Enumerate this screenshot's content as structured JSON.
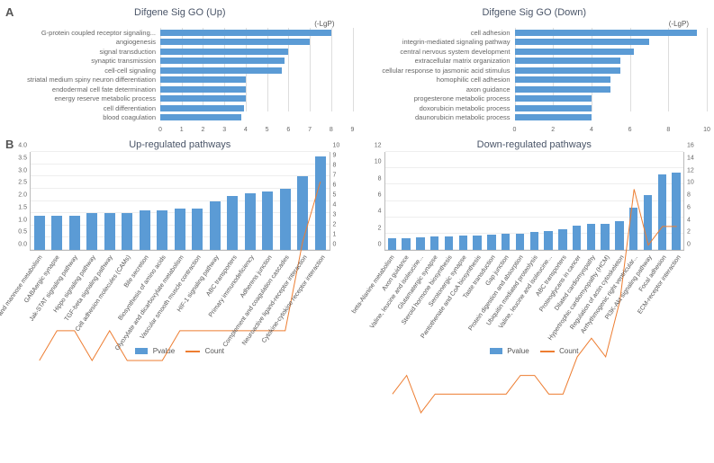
{
  "colors": {
    "bar": "#5b9bd5",
    "line": "#ed7d31",
    "grid": "#eeeeee",
    "axis": "#bbbbbb",
    "text": "#555555",
    "background": "#ffffff"
  },
  "panelA": {
    "letter": "A",
    "left": {
      "title": "Difgene Sig GO (Up)",
      "subtitle": "(-LgP)",
      "xlim": [
        0,
        9
      ],
      "xtick_step": 1,
      "bars": [
        {
          "label": "G-protein coupled receptor signaling...",
          "value": 8.0
        },
        {
          "label": "angiogenesis",
          "value": 7.0
        },
        {
          "label": "signal transduction",
          "value": 6.0
        },
        {
          "label": "synaptic transmission",
          "value": 5.8
        },
        {
          "label": "cell-cell signaling",
          "value": 5.7
        },
        {
          "label": "striatal medium spiny neuron differentiation",
          "value": 4.0
        },
        {
          "label": "endodermal cell fate determination",
          "value": 4.0
        },
        {
          "label": "energy reserve metabolic process",
          "value": 4.0
        },
        {
          "label": "cell differentiation",
          "value": 3.9
        },
        {
          "label": "blood coagulation",
          "value": 3.8
        }
      ]
    },
    "right": {
      "title": "Difgene Sig GO (Down)",
      "subtitle": "(-LgP)",
      "xlim": [
        0,
        10
      ],
      "xtick_step": 2,
      "bars": [
        {
          "label": "cell adhesion",
          "value": 9.5
        },
        {
          "label": "integrin-mediated signaling pathway",
          "value": 7.0
        },
        {
          "label": "central nervous system development",
          "value": 6.2
        },
        {
          "label": "extracellular matrix organization",
          "value": 5.5
        },
        {
          "label": "cellular response to jasmonic acid stimulus",
          "value": 5.5
        },
        {
          "label": "homophilic cell adhesion",
          "value": 5.0
        },
        {
          "label": "axon guidance",
          "value": 5.0
        },
        {
          "label": "progesterone metabolic process",
          "value": 4.0
        },
        {
          "label": "doxorubicin metabolic process",
          "value": 4.0
        },
        {
          "label": "daunorubicin metabolic process",
          "value": 4.0
        }
      ]
    }
  },
  "panelB": {
    "letter": "B",
    "legend": {
      "bar": "Pvalue",
      "line": "Count"
    },
    "left": {
      "title": "Up-regulated pathways",
      "y_left": {
        "lim": [
          0,
          4
        ],
        "step": 0.5
      },
      "y_right": {
        "lim": [
          0,
          10
        ],
        "step": 1
      },
      "items": [
        {
          "label": "Fructose and mannose metabolism",
          "pvalue": 1.4,
          "count": 3
        },
        {
          "label": "GABAergic synapse",
          "pvalue": 1.4,
          "count": 4
        },
        {
          "label": "Jak-STAT signaling pathway",
          "pvalue": 1.4,
          "count": 4
        },
        {
          "label": "Hippo signaling pathway",
          "pvalue": 1.5,
          "count": 3
        },
        {
          "label": "TGF-beta signaling pathway",
          "pvalue": 1.5,
          "count": 4
        },
        {
          "label": "Cell adhesion molecules (CAMs)",
          "pvalue": 1.5,
          "count": 3
        },
        {
          "label": "Bile secretion",
          "pvalue": 1.6,
          "count": 3
        },
        {
          "label": "Biosynthesis of amino acids",
          "pvalue": 1.6,
          "count": 3
        },
        {
          "label": "Glyoxylate and dicarboxylate metabolism",
          "pvalue": 1.7,
          "count": 4
        },
        {
          "label": "Vascular smooth muscle contraction",
          "pvalue": 1.7,
          "count": 4
        },
        {
          "label": "HIF-1 signaling pathway",
          "pvalue": 2.0,
          "count": 4
        },
        {
          "label": "ABC transporters",
          "pvalue": 2.2,
          "count": 4
        },
        {
          "label": "Primary immunodeficiency",
          "pvalue": 2.3,
          "count": 4
        },
        {
          "label": "Adherens junction",
          "pvalue": 2.4,
          "count": 4
        },
        {
          "label": "Complement and coagulation cascades",
          "pvalue": 2.5,
          "count": 4
        },
        {
          "label": "Neuroactive ligand-receptor interaction",
          "pvalue": 3.0,
          "count": 7
        },
        {
          "label": "Cytokine-cytokine receptor interaction",
          "pvalue": 3.8,
          "count": 9
        }
      ]
    },
    "right": {
      "title": "Down-regulated pathways",
      "y_left": {
        "lim": [
          0,
          12
        ],
        "step": 2
      },
      "y_right": {
        "lim": [
          0,
          16
        ],
        "step": 2
      },
      "items": [
        {
          "label": "beta-Alanine metabolism",
          "pvalue": 1.4,
          "count": 3
        },
        {
          "label": "Axon guidance",
          "pvalue": 1.4,
          "count": 4
        },
        {
          "label": "Valine, leucine and isoleucine...",
          "pvalue": 1.5,
          "count": 2
        },
        {
          "label": "Glutamatergic synapse",
          "pvalue": 1.6,
          "count": 3
        },
        {
          "label": "Steroid hormone biosynthesis",
          "pvalue": 1.7,
          "count": 3
        },
        {
          "label": "Serotonergic synapse",
          "pvalue": 1.8,
          "count": 3
        },
        {
          "label": "Pantothenate and CoA biosynthesis",
          "pvalue": 1.8,
          "count": 3
        },
        {
          "label": "Taste transduction",
          "pvalue": 1.9,
          "count": 3
        },
        {
          "label": "Gap junction",
          "pvalue": 2.0,
          "count": 3
        },
        {
          "label": "Protein digestion and absorption",
          "pvalue": 2.0,
          "count": 4
        },
        {
          "label": "Ubiquitin mediated proteolysis",
          "pvalue": 2.2,
          "count": 4
        },
        {
          "label": "Valine, leucine and isoleucine...",
          "pvalue": 2.3,
          "count": 3
        },
        {
          "label": "ABC transporters",
          "pvalue": 2.5,
          "count": 3
        },
        {
          "label": "Proteoglycans in cancer",
          "pvalue": 3.0,
          "count": 5
        },
        {
          "label": "Dilated cardiomyopathy",
          "pvalue": 3.2,
          "count": 6
        },
        {
          "label": "Hypertrophic cardiomyopathy (HCM)",
          "pvalue": 3.2,
          "count": 5
        },
        {
          "label": "Regulation of actin cytoskeleton",
          "pvalue": 3.5,
          "count": 8
        },
        {
          "label": "Arrhythmogenic right ventricular...",
          "pvalue": 5.2,
          "count": 14
        },
        {
          "label": "PI3K-Akt signaling pathway",
          "pvalue": 6.7,
          "count": 11
        },
        {
          "label": "Focal adhesion",
          "pvalue": 9.2,
          "count": 12
        },
        {
          "label": "ECM-receptor interaction",
          "pvalue": 9.5,
          "count": 12
        }
      ]
    }
  }
}
